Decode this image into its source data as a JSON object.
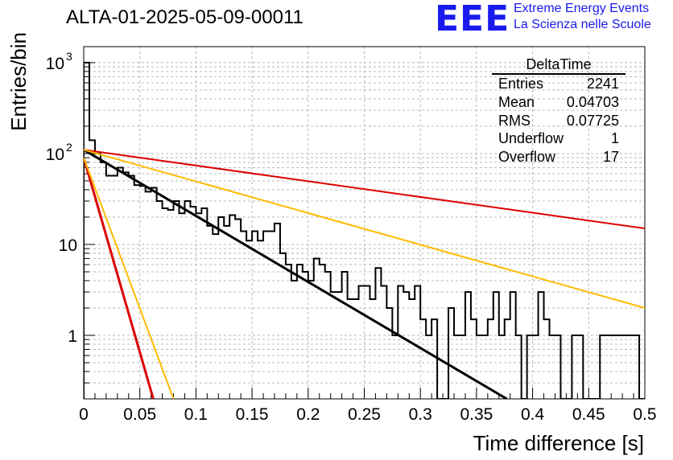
{
  "header": {
    "title": "ALTA-01-2025-05-09-00011",
    "logo_text": "EEE",
    "logo_line1": "Extreme Energy Events",
    "logo_line2": "La Scienza nelle Scuole"
  },
  "stats_box": {
    "title": "DeltaTime",
    "rows": [
      {
        "label": "Entries",
        "value": "2241"
      },
      {
        "label": "Mean",
        "value": "0.04703"
      },
      {
        "label": "RMS",
        "value": "0.07725"
      },
      {
        "label": "Underflow",
        "value": "1"
      },
      {
        "label": "Overflow",
        "value": "17"
      }
    ]
  },
  "chart_data": {
    "type": "histogram",
    "xlabel": "Time difference [s]",
    "ylabel": "Entries/bin",
    "xlim": [
      0,
      0.5
    ],
    "ylim": [
      0.2,
      1500
    ],
    "yscale": "log",
    "grid": true,
    "x_ticks": [
      "0",
      "0.05",
      "0.1",
      "0.15",
      "0.2",
      "0.25",
      "0.3",
      "0.35",
      "0.4",
      "0.45",
      "0.5"
    ],
    "x_tick_values": [
      0,
      0.05,
      0.1,
      0.15,
      0.2,
      0.25,
      0.3,
      0.35,
      0.4,
      0.45,
      0.5
    ],
    "y_ticks": [
      {
        "value": 1,
        "label": "1",
        "sup": ""
      },
      {
        "value": 10,
        "label": "10",
        "sup": ""
      },
      {
        "value": 100,
        "label": "10",
        "sup": "2"
      },
      {
        "value": 1000,
        "label": "10",
        "sup": "3"
      }
    ],
    "bin_width": 0.005,
    "histogram": {
      "name": "DeltaTime",
      "color": "#000000",
      "values": [
        1000,
        140,
        100,
        80,
        57,
        57,
        70,
        62,
        57,
        45,
        44,
        38,
        42,
        30,
        25,
        24,
        30,
        22,
        30,
        26,
        22,
        25,
        16,
        13,
        20,
        16,
        21,
        19,
        14,
        11,
        14,
        11,
        14,
        14,
        17,
        8,
        6,
        4,
        6,
        5,
        4,
        7,
        6,
        5,
        3,
        3,
        5,
        2.5,
        2.5,
        3.5,
        3.5,
        2.5,
        5.5,
        3.5,
        2,
        1,
        3.5,
        3,
        2.5,
        3.5,
        1.5,
        1,
        1.5,
        0.1,
        0.1,
        2,
        1,
        1,
        3,
        1.5,
        1,
        1,
        1.5,
        3,
        1,
        1.5,
        3,
        1,
        0.1,
        1,
        1,
        3,
        1.5,
        1,
        1,
        0.1,
        0.1,
        1,
        1,
        0.1,
        0.1,
        0.1,
        1,
        1,
        1,
        1,
        1,
        1,
        1,
        0.1
      ]
    },
    "fits": [
      {
        "name": "black",
        "color": "#000000",
        "width": 3,
        "x0": 0,
        "y0": 110,
        "x1": 0.377,
        "y1": 0.2
      },
      {
        "name": "red-slow",
        "color": "#dd0000",
        "width": 2,
        "x0": 0,
        "y0": 110,
        "x1": 0.5,
        "y1": 15
      },
      {
        "name": "orange-slow",
        "color": "#ffbb00",
        "width": 2,
        "x0": 0,
        "y0": 110,
        "x1": 0.5,
        "y1": 2.0
      },
      {
        "name": "red-fast",
        "color": "#dd0000",
        "width": 3,
        "x0": 0,
        "y0": 90,
        "x1": 0.062,
        "y1": 0.2
      },
      {
        "name": "orange-fast",
        "color": "#ffbb00",
        "width": 2,
        "x0": 0,
        "y0": 90,
        "x1": 0.08,
        "y1": 0.2
      }
    ]
  }
}
